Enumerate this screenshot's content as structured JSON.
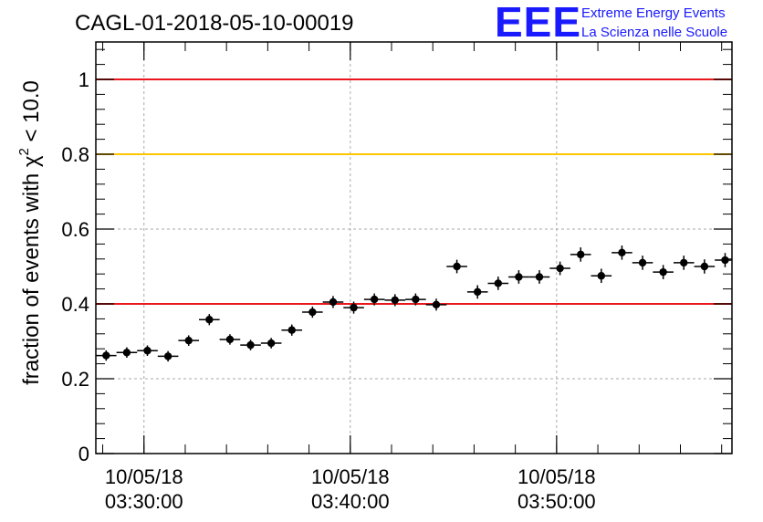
{
  "chart_data": {
    "type": "scatter",
    "title": "CAGL-01-2018-05-10-00019",
    "logo": {
      "mark": "EEE",
      "line1": "Extreme Energy Events",
      "line2": "La Scienza nelle Scuole",
      "color": "#1a1aff"
    },
    "ylabel": {
      "prefix": "fraction of events with ",
      "symbol": "χ",
      "superscript": "2",
      "suffix": " < 10.0"
    },
    "xlim": [
      "03:27:40",
      "03:58:30"
    ],
    "ylim": [
      0,
      1.1
    ],
    "grid": true,
    "x_ticks": [
      {
        "time": "03:30:00",
        "date": "10/05/18",
        "clock": "03:30:00"
      },
      {
        "time": "03:40:00",
        "date": "10/05/18",
        "clock": "03:40:00"
      },
      {
        "time": "03:50:00",
        "date": "10/05/18",
        "clock": "03:50:00"
      }
    ],
    "y_ticks": [
      {
        "value": 0,
        "label": "0"
      },
      {
        "value": 0.2,
        "label": "0.2"
      },
      {
        "value": 0.4,
        "label": "0.4"
      },
      {
        "value": 0.6,
        "label": "0.6"
      },
      {
        "value": 0.8,
        "label": "0.8"
      },
      {
        "value": 1.0,
        "label": "1"
      }
    ],
    "reference_lines": [
      {
        "y": 1.0,
        "color": "#e8181c"
      },
      {
        "y": 0.8,
        "color": "#ffc400"
      },
      {
        "y": 0.4,
        "color": "#e8181c"
      }
    ],
    "bin_half_width_seconds": 30,
    "points": [
      {
        "x": "03:28:10",
        "y": 0.262,
        "err": 0.014
      },
      {
        "x": "03:29:10",
        "y": 0.27,
        "err": 0.014
      },
      {
        "x": "03:30:10",
        "y": 0.275,
        "err": 0.014
      },
      {
        "x": "03:31:10",
        "y": 0.26,
        "err": 0.014
      },
      {
        "x": "03:32:10",
        "y": 0.302,
        "err": 0.014
      },
      {
        "x": "03:33:10",
        "y": 0.358,
        "err": 0.015
      },
      {
        "x": "03:34:10",
        "y": 0.305,
        "err": 0.014
      },
      {
        "x": "03:35:10",
        "y": 0.29,
        "err": 0.014
      },
      {
        "x": "03:36:10",
        "y": 0.295,
        "err": 0.014
      },
      {
        "x": "03:37:10",
        "y": 0.33,
        "err": 0.015
      },
      {
        "x": "03:38:10",
        "y": 0.378,
        "err": 0.015
      },
      {
        "x": "03:39:10",
        "y": 0.405,
        "err": 0.016
      },
      {
        "x": "03:40:10",
        "y": 0.39,
        "err": 0.016
      },
      {
        "x": "03:41:10",
        "y": 0.412,
        "err": 0.016
      },
      {
        "x": "03:42:10",
        "y": 0.41,
        "err": 0.016
      },
      {
        "x": "03:43:10",
        "y": 0.412,
        "err": 0.016
      },
      {
        "x": "03:44:10",
        "y": 0.398,
        "err": 0.016
      },
      {
        "x": "03:45:10",
        "y": 0.5,
        "err": 0.018
      },
      {
        "x": "03:46:10",
        "y": 0.432,
        "err": 0.018
      },
      {
        "x": "03:47:10",
        "y": 0.455,
        "err": 0.018
      },
      {
        "x": "03:48:10",
        "y": 0.472,
        "err": 0.018
      },
      {
        "x": "03:49:10",
        "y": 0.472,
        "err": 0.018
      },
      {
        "x": "03:50:10",
        "y": 0.495,
        "err": 0.018
      },
      {
        "x": "03:51:10",
        "y": 0.532,
        "err": 0.019
      },
      {
        "x": "03:52:10",
        "y": 0.475,
        "err": 0.019
      },
      {
        "x": "03:53:10",
        "y": 0.537,
        "err": 0.019
      },
      {
        "x": "03:54:10",
        "y": 0.51,
        "err": 0.019
      },
      {
        "x": "03:55:10",
        "y": 0.485,
        "err": 0.019
      },
      {
        "x": "03:56:10",
        "y": 0.51,
        "err": 0.019
      },
      {
        "x": "03:57:10",
        "y": 0.5,
        "err": 0.019
      },
      {
        "x": "03:58:10",
        "y": 0.517,
        "err": 0.019
      }
    ]
  }
}
